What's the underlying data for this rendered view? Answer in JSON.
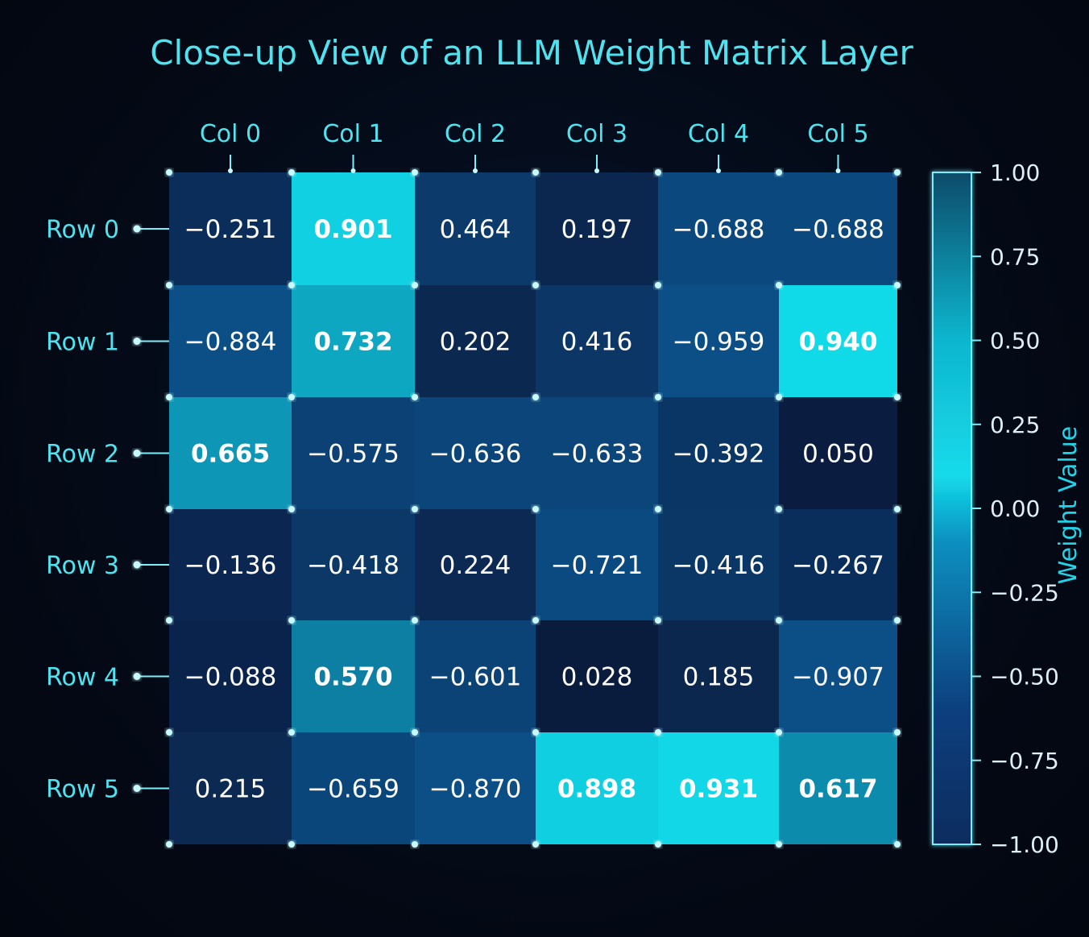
{
  "chart_data": {
    "type": "heatmap",
    "title": "Close-up View of an LLM Weight Matrix Layer",
    "columns": [
      "Col 0",
      "Col 1",
      "Col 2",
      "Col 3",
      "Col 4",
      "Col 5"
    ],
    "rows": [
      "Row 0",
      "Row 1",
      "Row 2",
      "Row 3",
      "Row 4",
      "Row 5"
    ],
    "values": [
      [
        "−0.251",
        "0.901",
        "0.464",
        "0.197",
        "−0.688",
        "−0.688"
      ],
      [
        "−0.884",
        "0.732",
        "0.202",
        "0.416",
        "−0.959",
        "0.940"
      ],
      [
        "0.665",
        "−0.575",
        "−0.636",
        "−0.633",
        "−0.392",
        "0.050"
      ],
      [
        "−0.136",
        "−0.418",
        "0.224",
        "−0.721",
        "−0.416",
        "−0.267"
      ],
      [
        "−0.088",
        "0.570",
        "−0.601",
        "0.028",
        "0.185",
        "−0.907"
      ],
      [
        "0.215",
        "−0.659",
        "−0.870",
        "0.898",
        "0.931",
        "0.617"
      ]
    ],
    "colorbar": {
      "label": "Weight Value",
      "ticks": [
        "1.00",
        "0.75",
        "0.50",
        "0.25",
        "0.00",
        "−0.25",
        "−0.50",
        "−0.75",
        "−1.00"
      ],
      "range": [
        -1,
        1
      ]
    },
    "colors": {
      "accent": "#4fe3ef",
      "cell_high": "#11dcea",
      "cell_mid": "#0b4f86",
      "cell_low": "#0a1a3b",
      "grid": "#7aeefa"
    }
  }
}
